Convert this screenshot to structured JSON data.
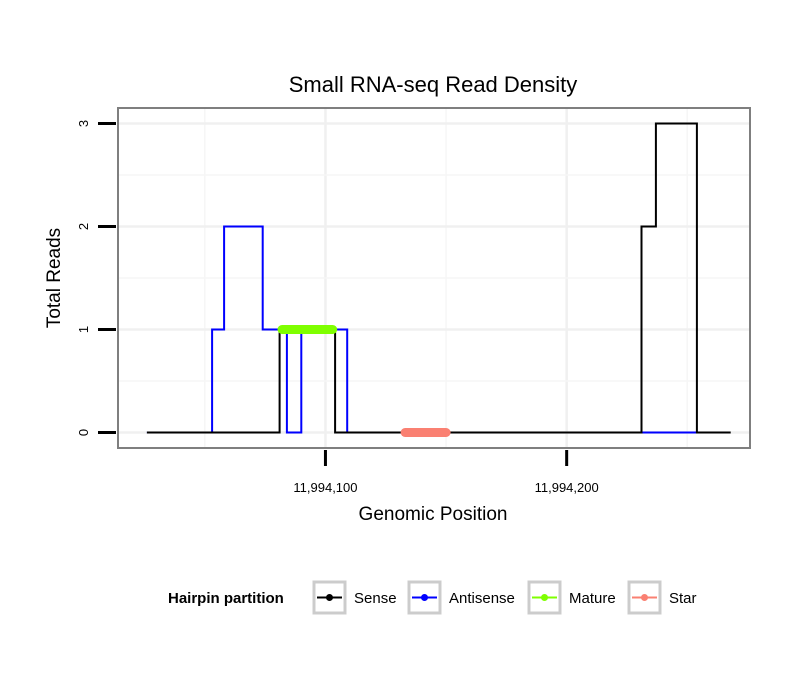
{
  "chart_data": {
    "type": "line",
    "title": "Small RNA-seq Read Density",
    "xlabel": "Genomic Position",
    "ylabel": "Total Reads",
    "xlim": [
      11994014,
      11994276
    ],
    "ylim": [
      -0.15,
      3.15
    ],
    "x_ticks": [
      {
        "value": 11994100,
        "label": "11,994,100"
      },
      {
        "value": 11994200,
        "label": "11,994,200"
      }
    ],
    "y_ticks": [
      {
        "value": 0,
        "label": "0"
      },
      {
        "value": 1,
        "label": "1"
      },
      {
        "value": 2,
        "label": "2"
      },
      {
        "value": 3,
        "label": "3"
      }
    ],
    "grid": true,
    "legend": {
      "title": "Hairpin partition",
      "position": "bottom",
      "entries": [
        {
          "name": "Sense",
          "color": "#000000"
        },
        {
          "name": "Antisense",
          "color": "#0000ff"
        },
        {
          "name": "Mature",
          "color": "#7fff00"
        },
        {
          "name": "Star",
          "color": "#fa8072"
        }
      ]
    },
    "series": [
      {
        "name": "Sense",
        "color": "#000000",
        "points": [
          [
            11994026,
            0
          ],
          [
            11994081,
            0
          ],
          [
            11994081,
            1
          ],
          [
            11994104,
            1
          ],
          [
            11994104,
            0
          ],
          [
            11994231,
            0
          ],
          [
            11994231,
            2
          ],
          [
            11994237,
            2
          ],
          [
            11994237,
            3
          ],
          [
            11994254,
            3
          ],
          [
            11994254,
            0
          ],
          [
            11994268,
            0
          ]
        ]
      },
      {
        "name": "Antisense",
        "color": "#0000ff",
        "points": [
          [
            11994026,
            0
          ],
          [
            11994053,
            0
          ],
          [
            11994053,
            1
          ],
          [
            11994058,
            1
          ],
          [
            11994058,
            2
          ],
          [
            11994074,
            2
          ],
          [
            11994074,
            1
          ],
          [
            11994084,
            1
          ],
          [
            11994084,
            0
          ],
          [
            11994090,
            0
          ],
          [
            11994090,
            1
          ],
          [
            11994109,
            1
          ],
          [
            11994109,
            0
          ],
          [
            11994254,
            0
          ]
        ]
      },
      {
        "name": "Mature",
        "color": "#7fff00",
        "points": [
          [
            11994082,
            1
          ],
          [
            11994103,
            1
          ]
        ]
      },
      {
        "name": "Star",
        "color": "#fa8072",
        "points": [
          [
            11994133,
            0
          ],
          [
            11994150,
            0
          ]
        ]
      }
    ]
  }
}
